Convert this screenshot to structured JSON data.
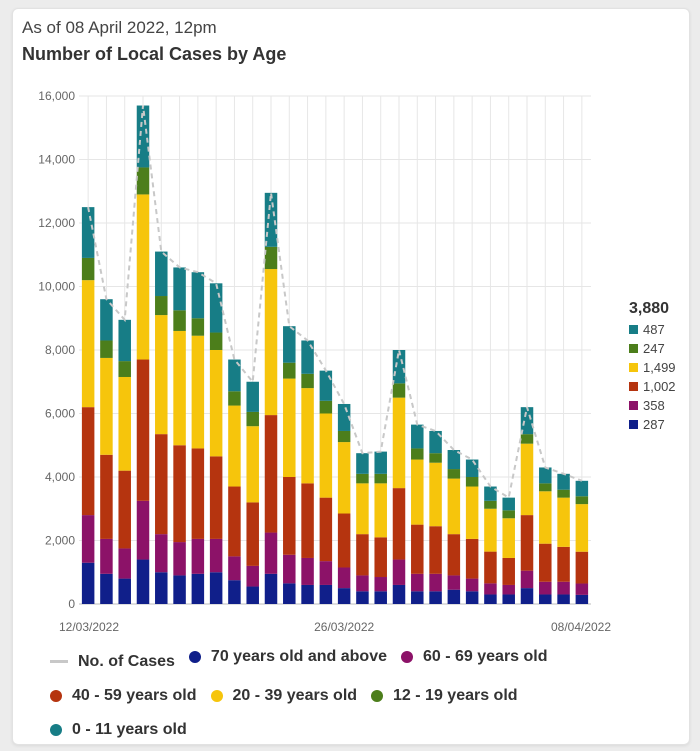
{
  "header": {
    "as_of": "As of 08 April 2022, 12pm",
    "title": "Number of Local Cases by Age"
  },
  "colors": {
    "age_70_plus": "#101f8a",
    "age_60_69": "#8c1268",
    "age_40_59": "#b5340f",
    "age_20_39": "#f6c50c",
    "age_12_19": "#4c7e1b",
    "age_0_11": "#177d86",
    "total_line": "#c8c8c8",
    "grid": "#e6e6e6"
  },
  "chart_data": {
    "type": "bar",
    "stacked": true,
    "x_tick_labels": [
      "12/03/2022",
      "26/03/2022",
      "08/04/2022"
    ],
    "categories": [
      "12/03/2022",
      "13/03/2022",
      "14/03/2022",
      "15/03/2022",
      "16/03/2022",
      "17/03/2022",
      "18/03/2022",
      "19/03/2022",
      "20/03/2022",
      "21/03/2022",
      "22/03/2022",
      "23/03/2022",
      "24/03/2022",
      "25/03/2022",
      "26/03/2022",
      "27/03/2022",
      "28/03/2022",
      "29/03/2022",
      "30/03/2022",
      "31/03/2022",
      "01/04/2022",
      "02/04/2022",
      "03/04/2022",
      "04/04/2022",
      "05/04/2022",
      "06/04/2022",
      "07/04/2022",
      "08/04/2022"
    ],
    "ylim": [
      0,
      16000
    ],
    "yticks": [
      0,
      2000,
      4000,
      6000,
      8000,
      10000,
      12000,
      14000,
      16000
    ],
    "ytick_labels": [
      "0",
      "2,000",
      "4,000",
      "6,000",
      "8,000",
      "10,000",
      "12,000",
      "14,000",
      "16,000"
    ],
    "grid": true,
    "series": [
      {
        "name": "70 years old and above",
        "color_key": "age_70_plus",
        "values": [
          1300,
          950,
          800,
          1400,
          1000,
          900,
          950,
          1000,
          750,
          550,
          950,
          650,
          600,
          600,
          500,
          400,
          400,
          600,
          400,
          400,
          450,
          400,
          300,
          300,
          500,
          300,
          300,
          287
        ]
      },
      {
        "name": "60 - 69 years old",
        "color_key": "age_60_69",
        "values": [
          1500,
          1100,
          950,
          1850,
          1200,
          1050,
          1100,
          1050,
          750,
          650,
          1300,
          900,
          850,
          750,
          650,
          500,
          450,
          800,
          550,
          550,
          450,
          400,
          350,
          300,
          550,
          400,
          400,
          358
        ]
      },
      {
        "name": "40 - 59 years old",
        "color_key": "age_40_59",
        "values": [
          3400,
          2650,
          2450,
          4450,
          3150,
          3050,
          2850,
          2600,
          2200,
          2000,
          3700,
          2450,
          2350,
          2000,
          1700,
          1300,
          1250,
          2250,
          1550,
          1500,
          1300,
          1250,
          1000,
          850,
          1750,
          1200,
          1100,
          1002
        ]
      },
      {
        "name": "20 - 39 years old",
        "color_key": "age_20_39",
        "values": [
          4000,
          3050,
          2950,
          5200,
          3750,
          3600,
          3550,
          3350,
          2550,
          2400,
          4600,
          3100,
          3000,
          2650,
          2250,
          1600,
          1700,
          2850,
          2050,
          2000,
          1750,
          1650,
          1350,
          1250,
          2250,
          1650,
          1550,
          1499
        ]
      },
      {
        "name": "12 - 19 years old",
        "color_key": "age_12_19",
        "values": [
          700,
          550,
          500,
          850,
          600,
          650,
          550,
          550,
          450,
          450,
          700,
          500,
          450,
          400,
          350,
          300,
          300,
          450,
          350,
          300,
          300,
          300,
          250,
          250,
          300,
          250,
          250,
          247
        ]
      },
      {
        "name": "0 - 11 years old",
        "color_key": "age_0_11",
        "values": [
          1600,
          1300,
          1300,
          1950,
          1400,
          1350,
          1450,
          1550,
          1000,
          950,
          1700,
          1150,
          1050,
          950,
          850,
          650,
          700,
          1050,
          750,
          700,
          600,
          550,
          450,
          400,
          850,
          500,
          500,
          487
        ]
      }
    ],
    "total_line_name": "No. of Cases",
    "latest": {
      "total": "3,880",
      "values": [
        {
          "label": "487",
          "color_key": "age_0_11"
        },
        {
          "label": "247",
          "color_key": "age_12_19"
        },
        {
          "label": "1,499",
          "color_key": "age_20_39"
        },
        {
          "label": "1,002",
          "color_key": "age_40_59"
        },
        {
          "label": "358",
          "color_key": "age_60_69"
        },
        {
          "label": "287",
          "color_key": "age_70_plus"
        }
      ]
    }
  },
  "legend": {
    "items": [
      {
        "label": "No. of Cases",
        "kind": "line",
        "color_key": "total_line"
      },
      {
        "label": "70 years old and above",
        "kind": "dot",
        "color_key": "age_70_plus"
      },
      {
        "label": "60 - 69 years old",
        "kind": "dot",
        "color_key": "age_60_69"
      },
      {
        "label": "40 - 59 years old",
        "kind": "dot",
        "color_key": "age_40_59"
      },
      {
        "label": "20 - 39 years old",
        "kind": "dot",
        "color_key": "age_20_39"
      },
      {
        "label": "12 - 19 years old",
        "kind": "dot",
        "color_key": "age_12_19"
      },
      {
        "label": "0 - 11 years old",
        "kind": "dot",
        "color_key": "age_0_11"
      }
    ]
  }
}
